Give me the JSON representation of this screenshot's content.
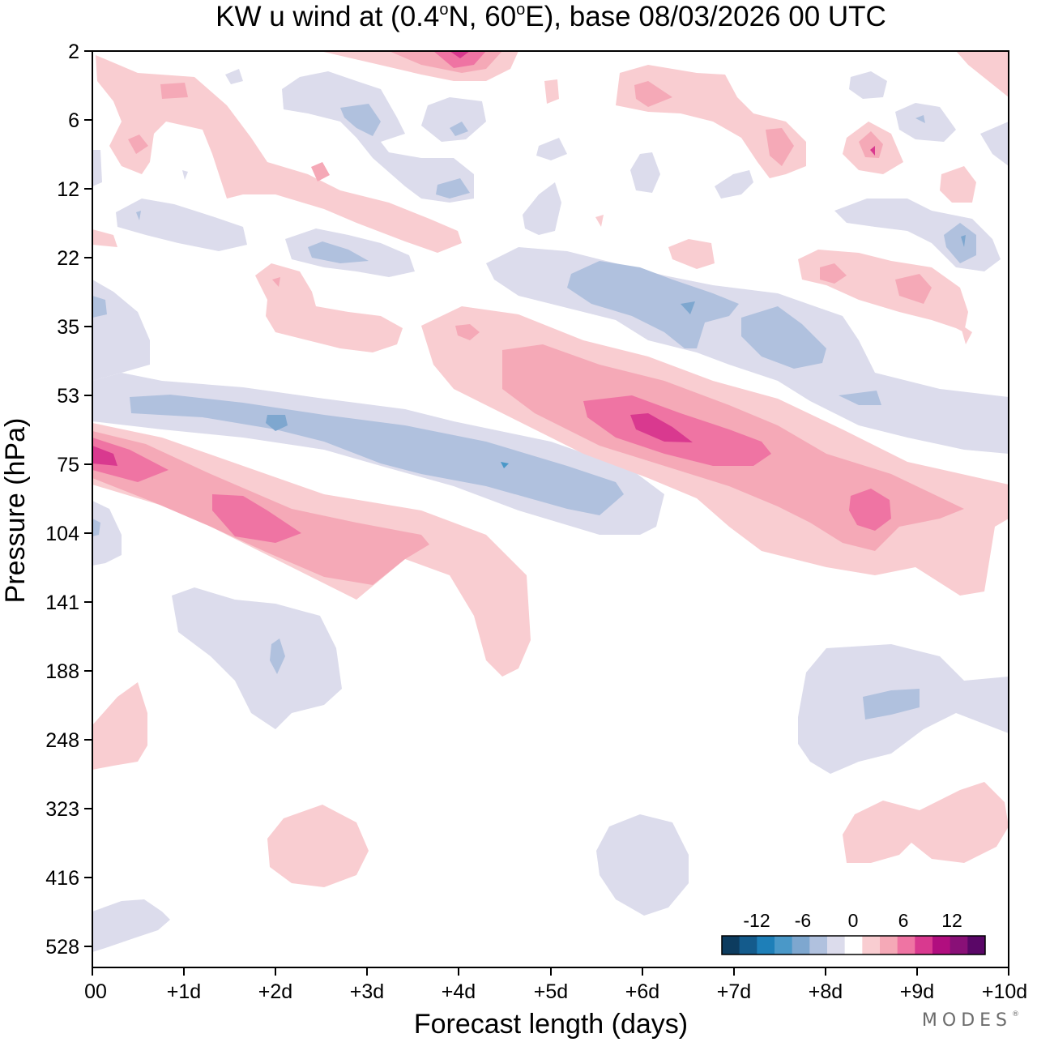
{
  "chart_data": {
    "type": "contour",
    "title_html": {
      "prefix": "KW u wind at (0.4",
      "deg": "o",
      "mid": "N, 60",
      "deg2": "o",
      "suffix": "E),  base 08/03/2026  00 UTC"
    },
    "xlabel": "Forecast length (days)",
    "ylabel": "Pressure (hPa)",
    "x_ticks": [
      "00",
      "+1d",
      "+2d",
      "+3d",
      "+4d",
      "+5d",
      "+6d",
      "+7d",
      "+8d",
      "+9d",
      "+10d"
    ],
    "y_ticks": [
      "2",
      "6",
      "12",
      "22",
      "35",
      "53",
      "75",
      "104",
      "141",
      "188",
      "248",
      "323",
      "416",
      "528"
    ],
    "xlim_days": [
      0,
      10
    ],
    "y_axis": "pressure, log-like, decreasing upward",
    "colorbar": {
      "labels": [
        "-12",
        "-6",
        "0",
        "6",
        "12"
      ],
      "bins": [
        "-16",
        "-14",
        "-12",
        "-10",
        "-8",
        "-6",
        "-4",
        "-2",
        "2",
        "4",
        "6",
        "8",
        "10",
        "12",
        "14",
        "16"
      ],
      "colors": [
        "#0d3c5f",
        "#145b8c",
        "#1e7fb8",
        "#4a98c8",
        "#7ea7cf",
        "#b0c1de",
        "#dcdcec",
        "#ffffff",
        "#f9cdd1",
        "#f5a9b7",
        "#ef74a3",
        "#d9398f",
        "#b10e7f",
        "#891077",
        "#5a0767"
      ]
    },
    "features": [
      {
        "sign": "positive",
        "max": 12,
        "desc": "descending easterly-to-westerly band from 75 hPa at day 0 to 141 hPa at day 4.5"
      },
      {
        "sign": "negative",
        "min": -8,
        "desc": "descending band from 53 hPa at day 0.5 to 104 hPa at day 6"
      },
      {
        "sign": "positive",
        "max": 12,
        "desc": "descending band from 35 hPa at day 4 to 104 hPa at day 10"
      },
      {
        "sign": "negative",
        "min": -8,
        "desc": "descending band from 22 hPa at day 5 to 53 hPa at day 10"
      }
    ]
  },
  "brand": {
    "text": "MODES",
    "mark": "®"
  }
}
